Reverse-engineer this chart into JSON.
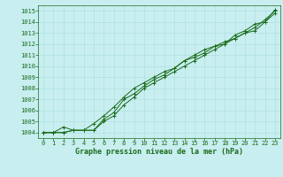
{
  "title": "Graphe pression niveau de la mer (hPa)",
  "background_color": "#c8eef0",
  "grid_color": "#aadddd",
  "line_color": "#1a6b1a",
  "xlim": [
    -0.5,
    23.5
  ],
  "ylim": [
    1003.5,
    1015.5
  ],
  "yticks": [
    1004,
    1005,
    1006,
    1007,
    1008,
    1009,
    1010,
    1011,
    1012,
    1013,
    1014,
    1015
  ],
  "xticks": [
    0,
    1,
    2,
    3,
    4,
    5,
    6,
    7,
    8,
    9,
    10,
    11,
    12,
    13,
    14,
    15,
    16,
    17,
    18,
    19,
    20,
    21,
    22,
    23
  ],
  "line1": [
    1004.0,
    1004.0,
    1004.5,
    1004.2,
    1004.2,
    1004.8,
    1005.5,
    1006.3,
    1007.2,
    1008.0,
    1008.5,
    1009.0,
    1009.5,
    1009.8,
    1010.5,
    1010.8,
    1011.2,
    1011.8,
    1012.2,
    1012.5,
    1013.0,
    1013.5,
    1014.2,
    1015.0
  ],
  "line2": [
    1004.0,
    1004.0,
    1004.0,
    1004.2,
    1004.2,
    1004.2,
    1005.0,
    1005.5,
    1006.5,
    1007.2,
    1008.0,
    1008.5,
    1009.0,
    1009.5,
    1010.0,
    1010.5,
    1011.0,
    1011.5,
    1012.0,
    1012.5,
    1013.0,
    1013.2,
    1014.0,
    1015.1
  ],
  "line3": [
    1004.0,
    1004.0,
    1004.0,
    1004.2,
    1004.2,
    1004.2,
    1005.2,
    1005.8,
    1007.0,
    1007.5,
    1008.2,
    1008.8,
    1009.2,
    1009.8,
    1010.5,
    1011.0,
    1011.5,
    1011.8,
    1012.0,
    1012.8,
    1013.2,
    1013.8,
    1014.0,
    1014.8
  ],
  "tick_fontsize": 5.0,
  "xlabel_fontsize": 6.0,
  "linewidth": 0.7,
  "markersize": 2.5,
  "markeredgewidth": 0.7
}
